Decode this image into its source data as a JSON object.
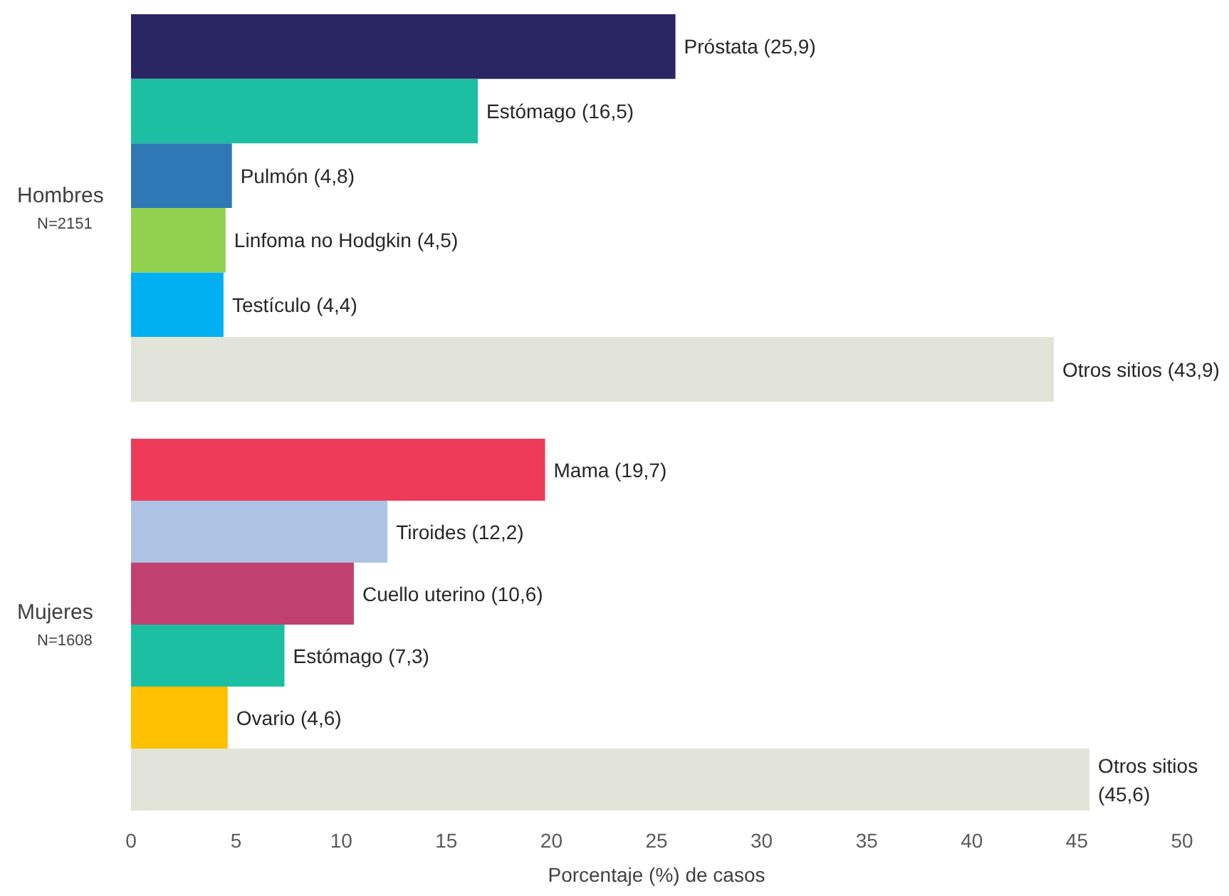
{
  "chart_data": [
    {
      "type": "bar",
      "orientation": "horizontal",
      "ylabel": "Hombres",
      "annotations": [
        "N=2151"
      ],
      "categories": [
        null,
        null,
        null,
        null,
        null,
        null
      ],
      "values": [
        25.9,
        16.5,
        4.8,
        4.5,
        4.4,
        43.9
      ],
      "colors": [
        "#2a2563",
        "#1dbfa3",
        "#2e79b5",
        "#92d050",
        "#00b0f0",
        "#e2e4d9"
      ],
      "value_labels": [
        "Próstata (25,9)",
        "Estómago (16,5)",
        "Pulmón (4,8)",
        "Linfoma no Hodgkin (4,5)",
        "Testículo (4,4)",
        "Otros sitios (43,9)"
      ],
      "xlim": [
        0,
        50
      ],
      "xticks": [
        0,
        5,
        10,
        15,
        20,
        25,
        30,
        35,
        40,
        45,
        50
      ],
      "tick_labels": false
    },
    {
      "type": "bar",
      "orientation": "horizontal",
      "ylabel": "Mujeres",
      "annotations": [
        "N=1608"
      ],
      "categories": [
        null,
        null,
        null,
        null,
        null,
        null
      ],
      "values": [
        19.7,
        12.2,
        10.6,
        7.3,
        4.6,
        45.6
      ],
      "colors": [
        "#ef3b5a",
        "#adc3e3",
        "#c0416f",
        "#1dbfa3",
        "#ffc000",
        "#e2e4d9"
      ],
      "value_labels": [
        "Mama (19,7)",
        "Tiroides (12,2)",
        "Cuello uterino (10,6)",
        "Estómago (7,3)",
        "Ovario (4,6)",
        "Otros sitios (45,6)"
      ],
      "xlim": [
        0,
        50
      ],
      "xticks": [
        0,
        5,
        10,
        15,
        20,
        25,
        30,
        35,
        40,
        45,
        50
      ],
      "xlabel": "Porcentaje (%) de casos"
    }
  ]
}
